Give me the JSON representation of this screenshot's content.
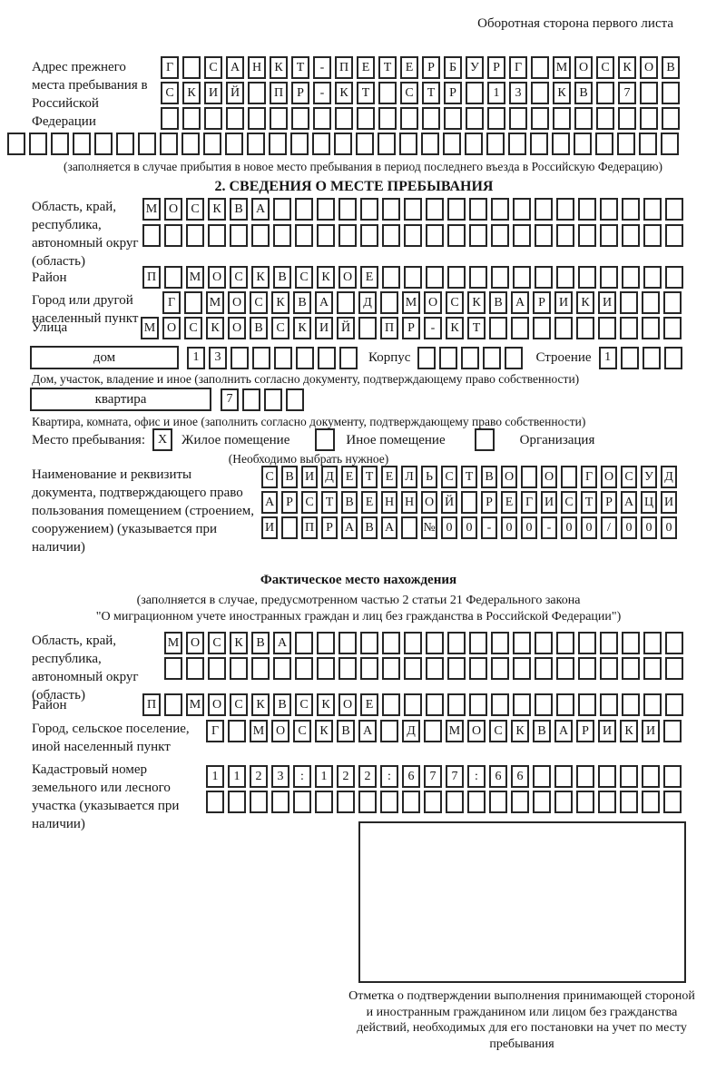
{
  "header": {
    "title": "Оборотная сторона первого листа"
  },
  "prev_address": {
    "label": "Адрес прежнего места пребывания в Российской Федерации",
    "row1": {
      "count": 24,
      "values": [
        "Г",
        "",
        "С",
        "А",
        "Н",
        "К",
        "Т",
        "-",
        "П",
        "Е",
        "Т",
        "Е",
        "Р",
        "Б",
        "У",
        "Р",
        "Г",
        "",
        "М",
        "О",
        "С",
        "К",
        "О",
        "В"
      ]
    },
    "row2": {
      "count": 24,
      "values": [
        "С",
        "К",
        "И",
        "Й",
        "",
        "П",
        "Р",
        "-",
        "К",
        "Т",
        "",
        "С",
        "Т",
        "Р",
        "",
        "1",
        "3",
        "",
        "К",
        "В",
        "",
        "7",
        "",
        ""
      ]
    },
    "row3": {
      "count": 24,
      "values": []
    },
    "row4": {
      "count": 31,
      "values": []
    },
    "caption": "(заполняется в случае прибытия в новое место пребывания в период последнего въезда в Российскую Федерацию)"
  },
  "section2": {
    "title": "2. СВЕДЕНИЯ О МЕСТЕ ПРЕБЫВАНИЯ",
    "region": {
      "label": "Область, край, республика, автономный округ (область)",
      "row1": {
        "count": 25,
        "values": [
          "М",
          "О",
          "С",
          "К",
          "В",
          "А"
        ]
      },
      "row2": {
        "count": 25,
        "values": []
      }
    },
    "district": {
      "label": "Район",
      "row": {
        "count": 25,
        "values": [
          "П",
          "",
          "М",
          "О",
          "С",
          "К",
          "В",
          "С",
          "К",
          "О",
          "Е"
        ]
      }
    },
    "city": {
      "label": "Город или другой населенный пункт",
      "row": {
        "count": 24,
        "values": [
          "Г",
          "",
          "М",
          "О",
          "С",
          "К",
          "В",
          "А",
          "",
          "Д",
          "",
          "М",
          "О",
          "С",
          "К",
          "В",
          "А",
          "Р",
          "И",
          "К",
          "И"
        ]
      }
    },
    "street": {
      "label": "Улица",
      "row": {
        "count": 25,
        "values": [
          "М",
          "О",
          "С",
          "К",
          "О",
          "В",
          "С",
          "К",
          "И",
          "Й",
          "",
          "П",
          "Р",
          "-",
          "К",
          "Т"
        ]
      }
    },
    "house": {
      "box_label": "дом",
      "cells": {
        "count": 8,
        "values": [
          "1",
          "3"
        ]
      },
      "korpus_label": "Корпус",
      "korpus_cells": {
        "count": 5,
        "values": []
      },
      "stroenie_label": "Строение",
      "stroenie_cells": {
        "count": 4,
        "values": [
          "1"
        ]
      },
      "caption": "Дом, участок, владение и иное (заполнить согласно документу, подтверждающему право собственности)"
    },
    "apartment": {
      "box_label": "квартира",
      "cells": {
        "count": 4,
        "values": [
          "7"
        ]
      },
      "caption": "Квартира, комната, офис и иное (заполнить согласно документу, подтверждающему право собственности)"
    },
    "stay_type": {
      "label": "Место пребывания:",
      "opt1": {
        "mark": "X",
        "label": "Жилое помещение"
      },
      "opt2": {
        "mark": "",
        "label": "Иное помещение"
      },
      "opt3": {
        "mark": "",
        "label": "Организация"
      },
      "note": "(Необходимо выбрать нужное)"
    },
    "doc": {
      "label": "Наименование и реквизиты документа, подтверждающего право пользования помещением (строением, сооружением) (указывается при наличии)",
      "row1": {
        "count": 21,
        "values": [
          "С",
          "В",
          "И",
          "Д",
          "Е",
          "Т",
          "Е",
          "Л",
          "Ь",
          "С",
          "Т",
          "В",
          "О",
          "",
          "О",
          "",
          "Г",
          "О",
          "С",
          "У",
          "Д"
        ]
      },
      "row2": {
        "count": 21,
        "values": [
          "А",
          "Р",
          "С",
          "Т",
          "В",
          "Е",
          "Н",
          "Н",
          "О",
          "Й",
          "",
          "Р",
          "Е",
          "Г",
          "И",
          "С",
          "Т",
          "Р",
          "А",
          "Ц",
          "И"
        ]
      },
      "row3": {
        "count": 21,
        "values": [
          "И",
          "",
          "П",
          "Р",
          "А",
          "В",
          "А",
          "",
          "№",
          "0",
          "0",
          "-",
          "0",
          "0",
          "-",
          "0",
          "0",
          "/",
          "0",
          "0",
          "0"
        ]
      }
    }
  },
  "actual_location": {
    "title": "Фактическое место нахождения",
    "subtitle1": "(заполняется в случае, предусмотренном частью 2 статьи 21 Федерального закона",
    "subtitle2": "\"О миграционном учете иностранных граждан и лиц без гражданства в Российской Федерации\")",
    "region": {
      "label": "Область, край, республика, автономный округ (область)",
      "row1": {
        "count": 24,
        "values": [
          "М",
          "О",
          "С",
          "К",
          "В",
          "А"
        ]
      },
      "row2": {
        "count": 24,
        "values": []
      }
    },
    "district": {
      "label": "Район",
      "row": {
        "count": 25,
        "values": [
          "П",
          "",
          "М",
          "О",
          "С",
          "К",
          "В",
          "С",
          "К",
          "О",
          "Е"
        ]
      }
    },
    "city": {
      "label": "Город, сельское поселение, иной населенный пункт",
      "row": {
        "count": 22,
        "values": [
          "Г",
          "",
          "М",
          "О",
          "С",
          "К",
          "В",
          "А",
          "",
          "Д",
          "",
          "М",
          "О",
          "С",
          "К",
          "В",
          "А",
          "Р",
          "И",
          "К",
          "И"
        ]
      }
    },
    "cadastral": {
      "label": "Кадастровый номер земельного или лесного участка (указывается при наличии)",
      "row1": {
        "count": 22,
        "values": [
          "1",
          "1",
          "2",
          "3",
          ":",
          "1",
          "2",
          "2",
          ":",
          "6",
          "7",
          "7",
          ":",
          "6",
          "6"
        ]
      },
      "row2": {
        "count": 22,
        "values": []
      }
    }
  },
  "stamp": {
    "caption": "Отметка о подтверждении выполнения принимающей стороной и иностранным гражданином или лицом без гражданства действий, необходимых для его постановки на учет по месту пребывания"
  }
}
